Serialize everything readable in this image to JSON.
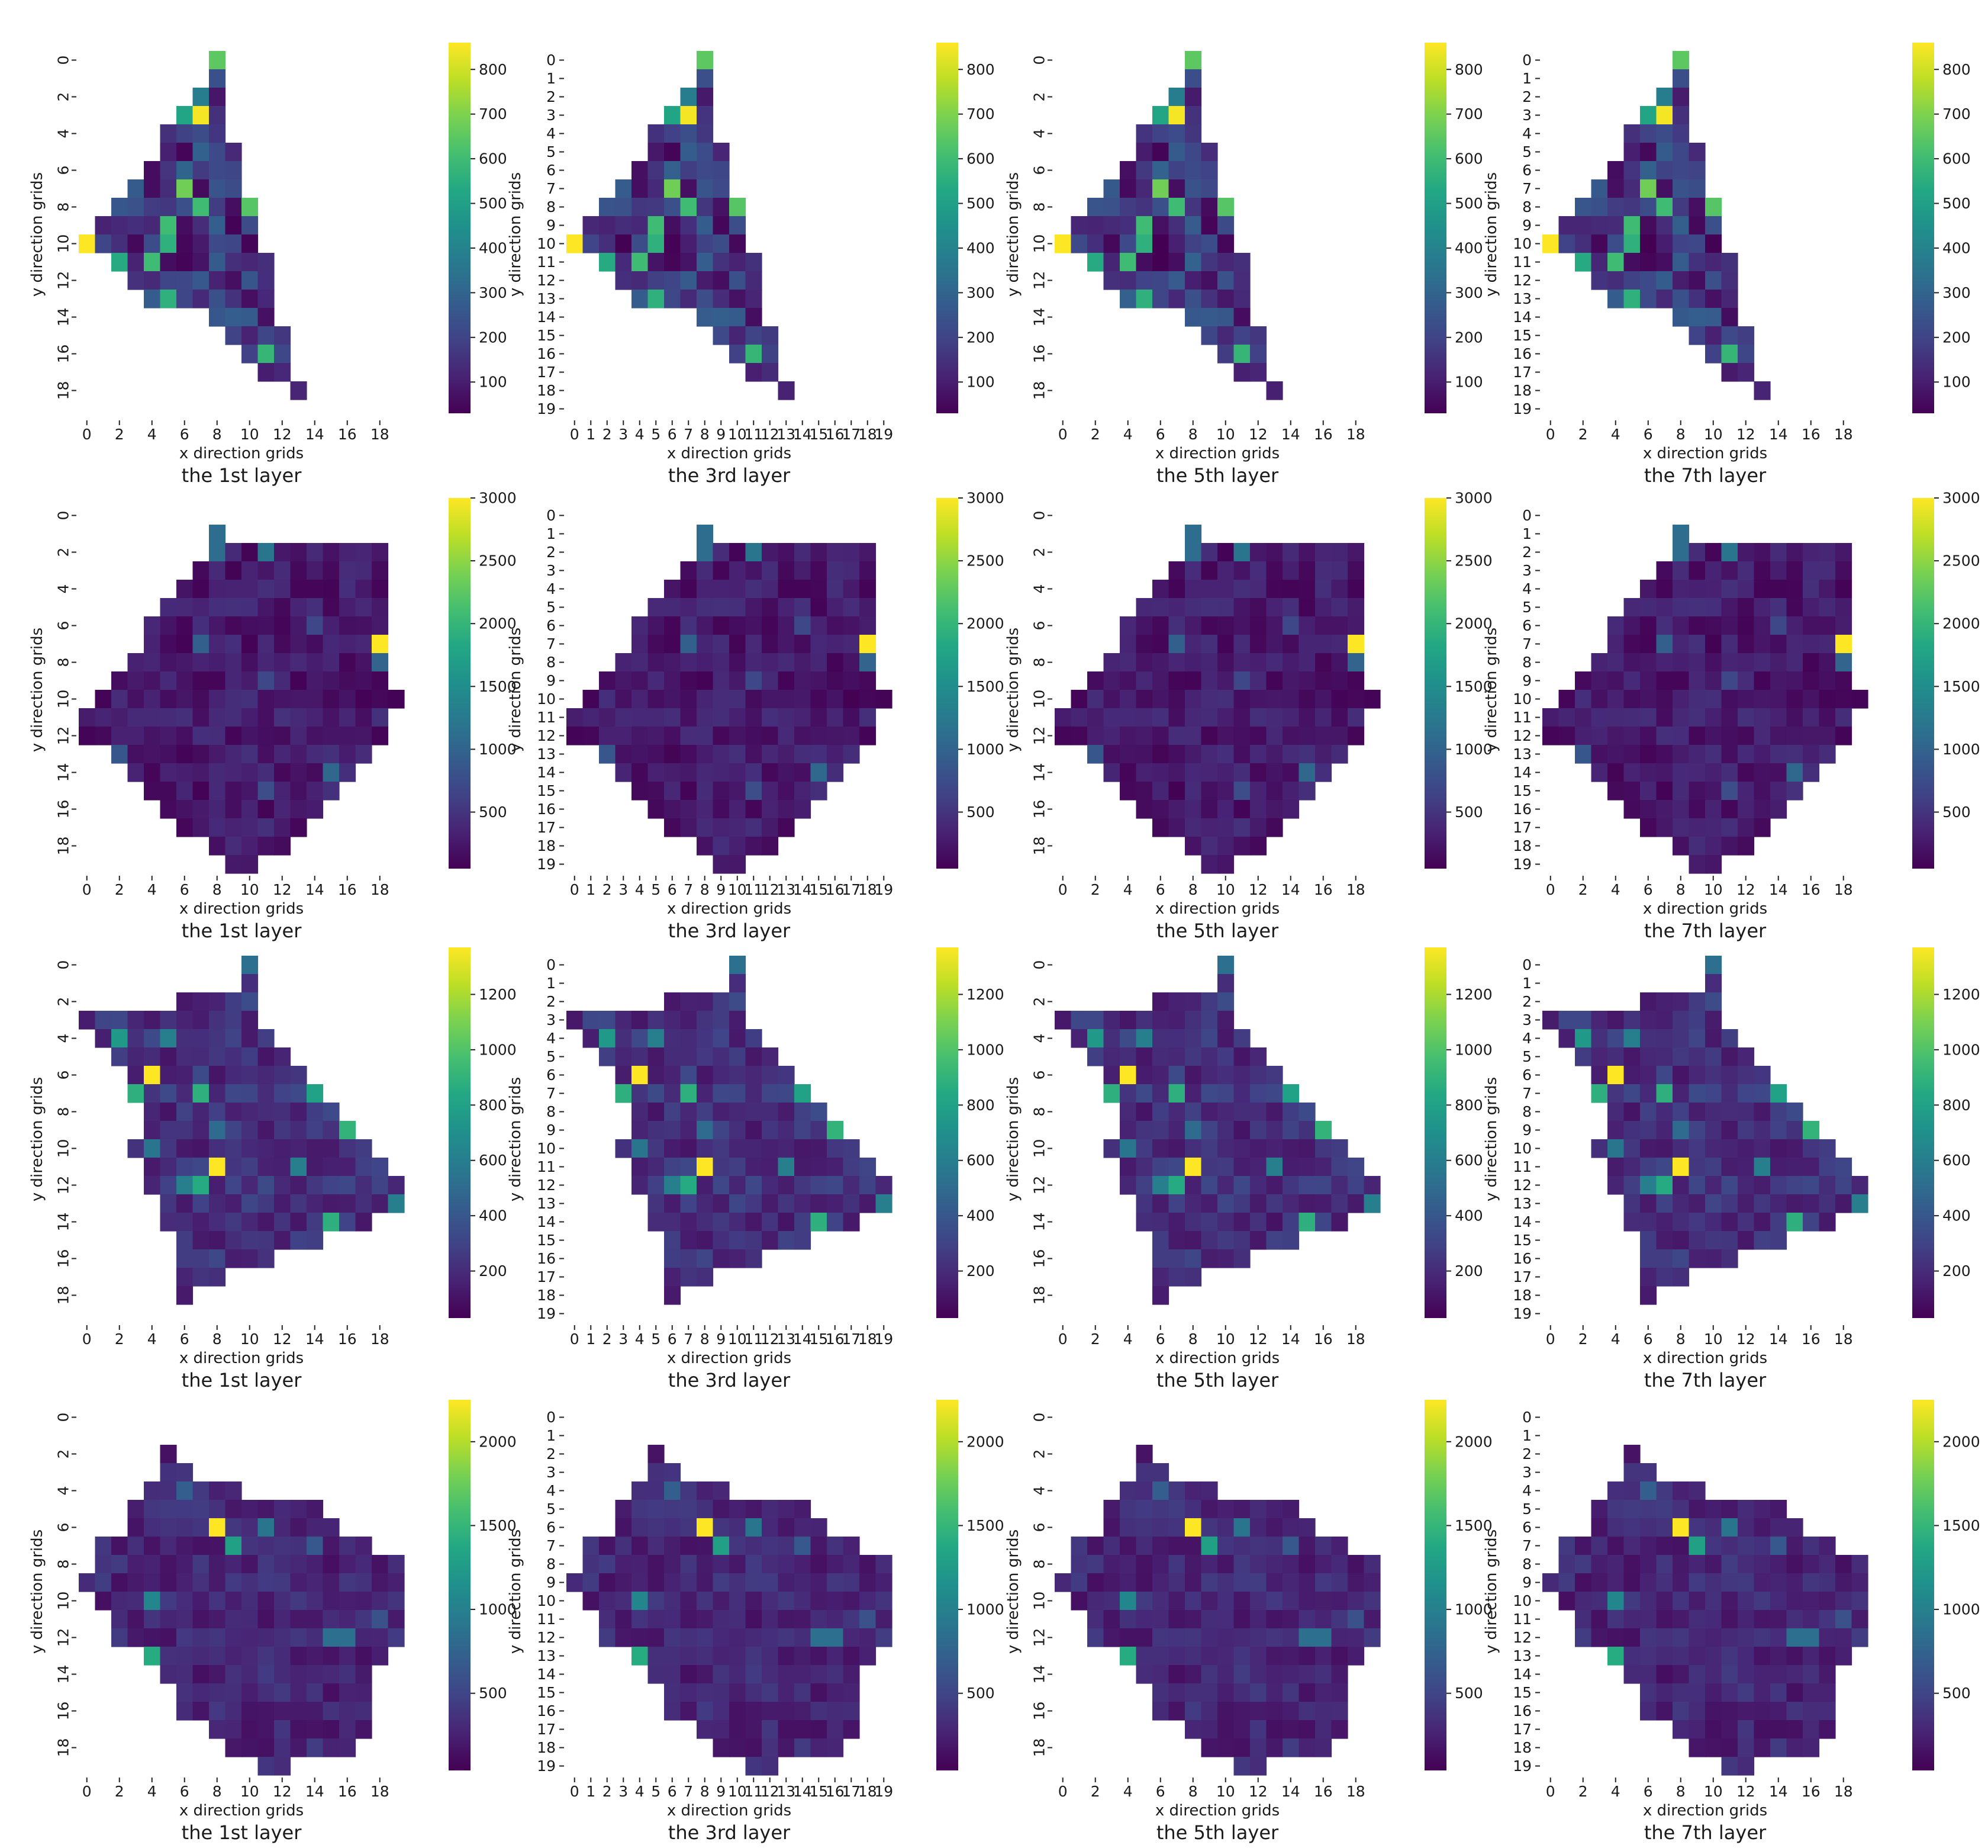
{
  "chart_data": {
    "type": "heatmap",
    "colormap": "viridis",
    "grid": false,
    "xlabel": "x direction grids",
    "ylabel": "y direction grids",
    "layer_titles": [
      "the 1st layer",
      "the 3rd layer",
      "the 5th layer",
      "the 7th layer"
    ],
    "x_ticks_sparse": [
      "0",
      "2",
      "4",
      "6",
      "8",
      "10",
      "12",
      "14",
      "16",
      "18"
    ],
    "y_ticks_sparse": [
      "0",
      "2",
      "4",
      "6",
      "8",
      "10",
      "12",
      "14",
      "16",
      "18"
    ],
    "x_ticks_full": [
      "0",
      "1",
      "2",
      "3",
      "4",
      "5",
      "6",
      "7",
      "8",
      "9",
      "10",
      "11",
      "12",
      "13",
      "14",
      "15",
      "16",
      "17",
      "18",
      "19"
    ],
    "y_ticks_full": [
      "0",
      "1",
      "2",
      "3",
      "4",
      "5",
      "6",
      "7",
      "8",
      "9",
      "10",
      "11",
      "12",
      "13",
      "14",
      "15",
      "16",
      "17",
      "18",
      "19"
    ],
    "panel_axis_styles": [
      "sparse",
      "full",
      "sparse",
      "full-y"
    ],
    "rows": [
      {
        "colorbar": {
          "min": 30,
          "max": 860,
          "ticks": [
            "100",
            "200",
            "300",
            "400",
            "500",
            "600",
            "700",
            "800"
          ],
          "tick_values": [
            100,
            200,
            300,
            400,
            500,
            600,
            700,
            800
          ]
        },
        "shape": [
          [
            0,
            8,
            8
          ],
          [
            1,
            8,
            8
          ],
          [
            2,
            7,
            8
          ],
          [
            3,
            6,
            8
          ],
          [
            4,
            5,
            8
          ],
          [
            5,
            5,
            9
          ],
          [
            6,
            4,
            9
          ],
          [
            7,
            3,
            9
          ],
          [
            8,
            2,
            10
          ],
          [
            9,
            1,
            10
          ],
          [
            10,
            0,
            10
          ],
          [
            11,
            2,
            11
          ],
          [
            12,
            3,
            11
          ],
          [
            13,
            4,
            11
          ],
          [
            14,
            8,
            11
          ],
          [
            15,
            9,
            12
          ],
          [
            16,
            10,
            12
          ],
          [
            17,
            11,
            12
          ],
          [
            18,
            13,
            13
          ]
        ],
        "hot": [
          [
            0,
            8,
            650
          ],
          [
            2,
            7,
            380
          ],
          [
            3,
            7,
            850
          ],
          [
            7,
            6,
            680
          ],
          [
            8,
            7,
            600
          ],
          [
            8,
            10,
            640
          ],
          [
            9,
            5,
            600
          ],
          [
            10,
            0,
            860
          ],
          [
            10,
            5,
            560
          ],
          [
            11,
            2,
            540
          ],
          [
            11,
            4,
            600
          ],
          [
            13,
            5,
            560
          ],
          [
            16,
            11,
            580
          ],
          [
            3,
            6,
            520
          ],
          [
            12,
            2,
            440
          ]
        ],
        "base": 140,
        "spread": 260
      },
      {
        "colorbar": {
          "min": 50,
          "max": 3000,
          "ticks": [
            "500",
            "1000",
            "1500",
            "2000",
            "2500",
            "3000"
          ],
          "tick_values": [
            500,
            1000,
            1500,
            2000,
            2500,
            3000
          ]
        },
        "shape": [
          [
            1,
            8,
            8
          ],
          [
            2,
            8,
            18
          ],
          [
            3,
            7,
            18
          ],
          [
            4,
            6,
            18
          ],
          [
            5,
            5,
            18
          ],
          [
            6,
            4,
            18
          ],
          [
            7,
            4,
            18
          ],
          [
            8,
            3,
            18
          ],
          [
            9,
            2,
            18
          ],
          [
            10,
            1,
            19
          ],
          [
            11,
            0,
            18
          ],
          [
            12,
            0,
            18
          ],
          [
            13,
            2,
            17
          ],
          [
            14,
            3,
            16
          ],
          [
            15,
            4,
            15
          ],
          [
            16,
            5,
            14
          ],
          [
            17,
            6,
            13
          ],
          [
            18,
            8,
            12
          ],
          [
            19,
            9,
            10
          ]
        ],
        "hot": [
          [
            1,
            8,
            1100
          ],
          [
            2,
            8,
            1100
          ],
          [
            2,
            11,
            1200
          ],
          [
            7,
            18,
            3000
          ],
          [
            8,
            18,
            1000
          ],
          [
            13,
            2,
            850
          ],
          [
            14,
            15,
            1050
          ],
          [
            7,
            7,
            950
          ],
          [
            6,
            14,
            700
          ],
          [
            9,
            11,
            700
          ],
          [
            15,
            11,
            750
          ]
        ],
        "base": 230,
        "spread": 400
      },
      {
        "colorbar": {
          "min": 30,
          "max": 1370,
          "ticks": [
            "200",
            "400",
            "600",
            "800",
            "1000",
            "1200"
          ],
          "tick_values": [
            200,
            400,
            600,
            800,
            1000,
            1200
          ]
        },
        "shape": [
          [
            0,
            10,
            10
          ],
          [
            1,
            10,
            10
          ],
          [
            2,
            6,
            10
          ],
          [
            3,
            0,
            10
          ],
          [
            4,
            1,
            11
          ],
          [
            5,
            2,
            12
          ],
          [
            6,
            3,
            13
          ],
          [
            7,
            3,
            14
          ],
          [
            8,
            4,
            15
          ],
          [
            9,
            4,
            16
          ],
          [
            10,
            3,
            17
          ],
          [
            11,
            4,
            18
          ],
          [
            12,
            4,
            19
          ],
          [
            13,
            5,
            19
          ],
          [
            14,
            5,
            17
          ],
          [
            15,
            6,
            14
          ],
          [
            16,
            6,
            11
          ],
          [
            17,
            6,
            8
          ],
          [
            18,
            6,
            6
          ]
        ],
        "hot": [
          [
            6,
            4,
            1370
          ],
          [
            11,
            8,
            1370
          ],
          [
            7,
            3,
            880
          ],
          [
            7,
            7,
            880
          ],
          [
            14,
            15,
            880
          ],
          [
            9,
            16,
            900
          ],
          [
            12,
            7,
            850
          ],
          [
            4,
            2,
            750
          ],
          [
            7,
            14,
            800
          ],
          [
            13,
            19,
            600
          ],
          [
            0,
            10,
            520
          ],
          [
            4,
            5,
            600
          ],
          [
            10,
            4,
            550
          ],
          [
            11,
            13,
            600
          ],
          [
            12,
            6,
            600
          ],
          [
            9,
            8,
            500
          ]
        ],
        "base": 200,
        "spread": 230
      },
      {
        "colorbar": {
          "min": 40,
          "max": 2250,
          "ticks": [
            "500",
            "1000",
            "1500",
            "2000"
          ],
          "tick_values": [
            500,
            1000,
            1500,
            2000
          ]
        },
        "shape": [
          [
            2,
            5,
            5
          ],
          [
            3,
            5,
            6
          ],
          [
            4,
            4,
            9
          ],
          [
            5,
            3,
            14
          ],
          [
            6,
            3,
            15
          ],
          [
            7,
            1,
            17
          ],
          [
            8,
            1,
            19
          ],
          [
            9,
            0,
            19
          ],
          [
            10,
            1,
            19
          ],
          [
            11,
            2,
            19
          ],
          [
            12,
            2,
            19
          ],
          [
            13,
            4,
            18
          ],
          [
            14,
            5,
            17
          ],
          [
            15,
            6,
            17
          ],
          [
            16,
            6,
            17
          ],
          [
            17,
            8,
            17
          ],
          [
            18,
            9,
            16
          ],
          [
            19,
            11,
            12
          ]
        ],
        "hot": [
          [
            6,
            8,
            2250
          ],
          [
            7,
            9,
            1300
          ],
          [
            10,
            4,
            1050
          ],
          [
            13,
            4,
            1400
          ],
          [
            6,
            11,
            900
          ],
          [
            12,
            15,
            850
          ],
          [
            12,
            16,
            850
          ],
          [
            4,
            6,
            700
          ],
          [
            11,
            18,
            600
          ],
          [
            3,
            9,
            600
          ],
          [
            7,
            14,
            650
          ]
        ],
        "base": 260,
        "spread": 300
      }
    ]
  }
}
